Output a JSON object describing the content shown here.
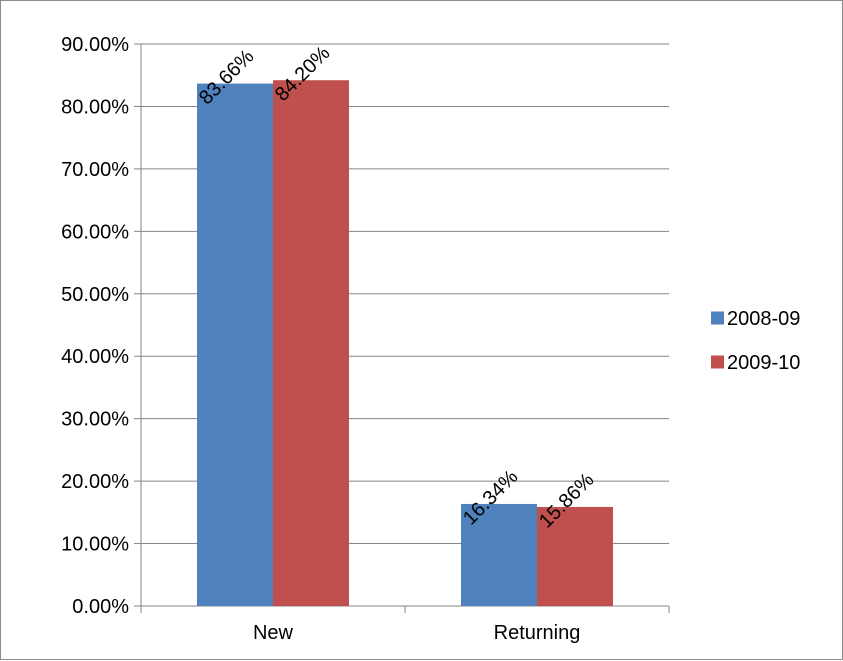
{
  "chart_data": {
    "type": "bar",
    "categories": [
      "New",
      "Returning"
    ],
    "series": [
      {
        "name": "2008-09",
        "color": "#4f81bd",
        "values": [
          83.66,
          16.34
        ],
        "labels": [
          "83.66%",
          "16.34%"
        ]
      },
      {
        "name": "2009-10",
        "color": "#c0504d",
        "values": [
          84.2,
          15.86
        ],
        "labels": [
          "84.20%",
          "15.86%"
        ]
      }
    ],
    "ylim": [
      0,
      90
    ],
    "yticks": [
      0,
      10,
      20,
      30,
      40,
      50,
      60,
      70,
      80,
      90
    ],
    "ytick_labels": [
      "0.00%",
      "10.00%",
      "20.00%",
      "30.00%",
      "40.00%",
      "50.00%",
      "60.00%",
      "70.00%",
      "80.00%",
      "90.00%"
    ],
    "grid": true,
    "legend_position": "right"
  }
}
